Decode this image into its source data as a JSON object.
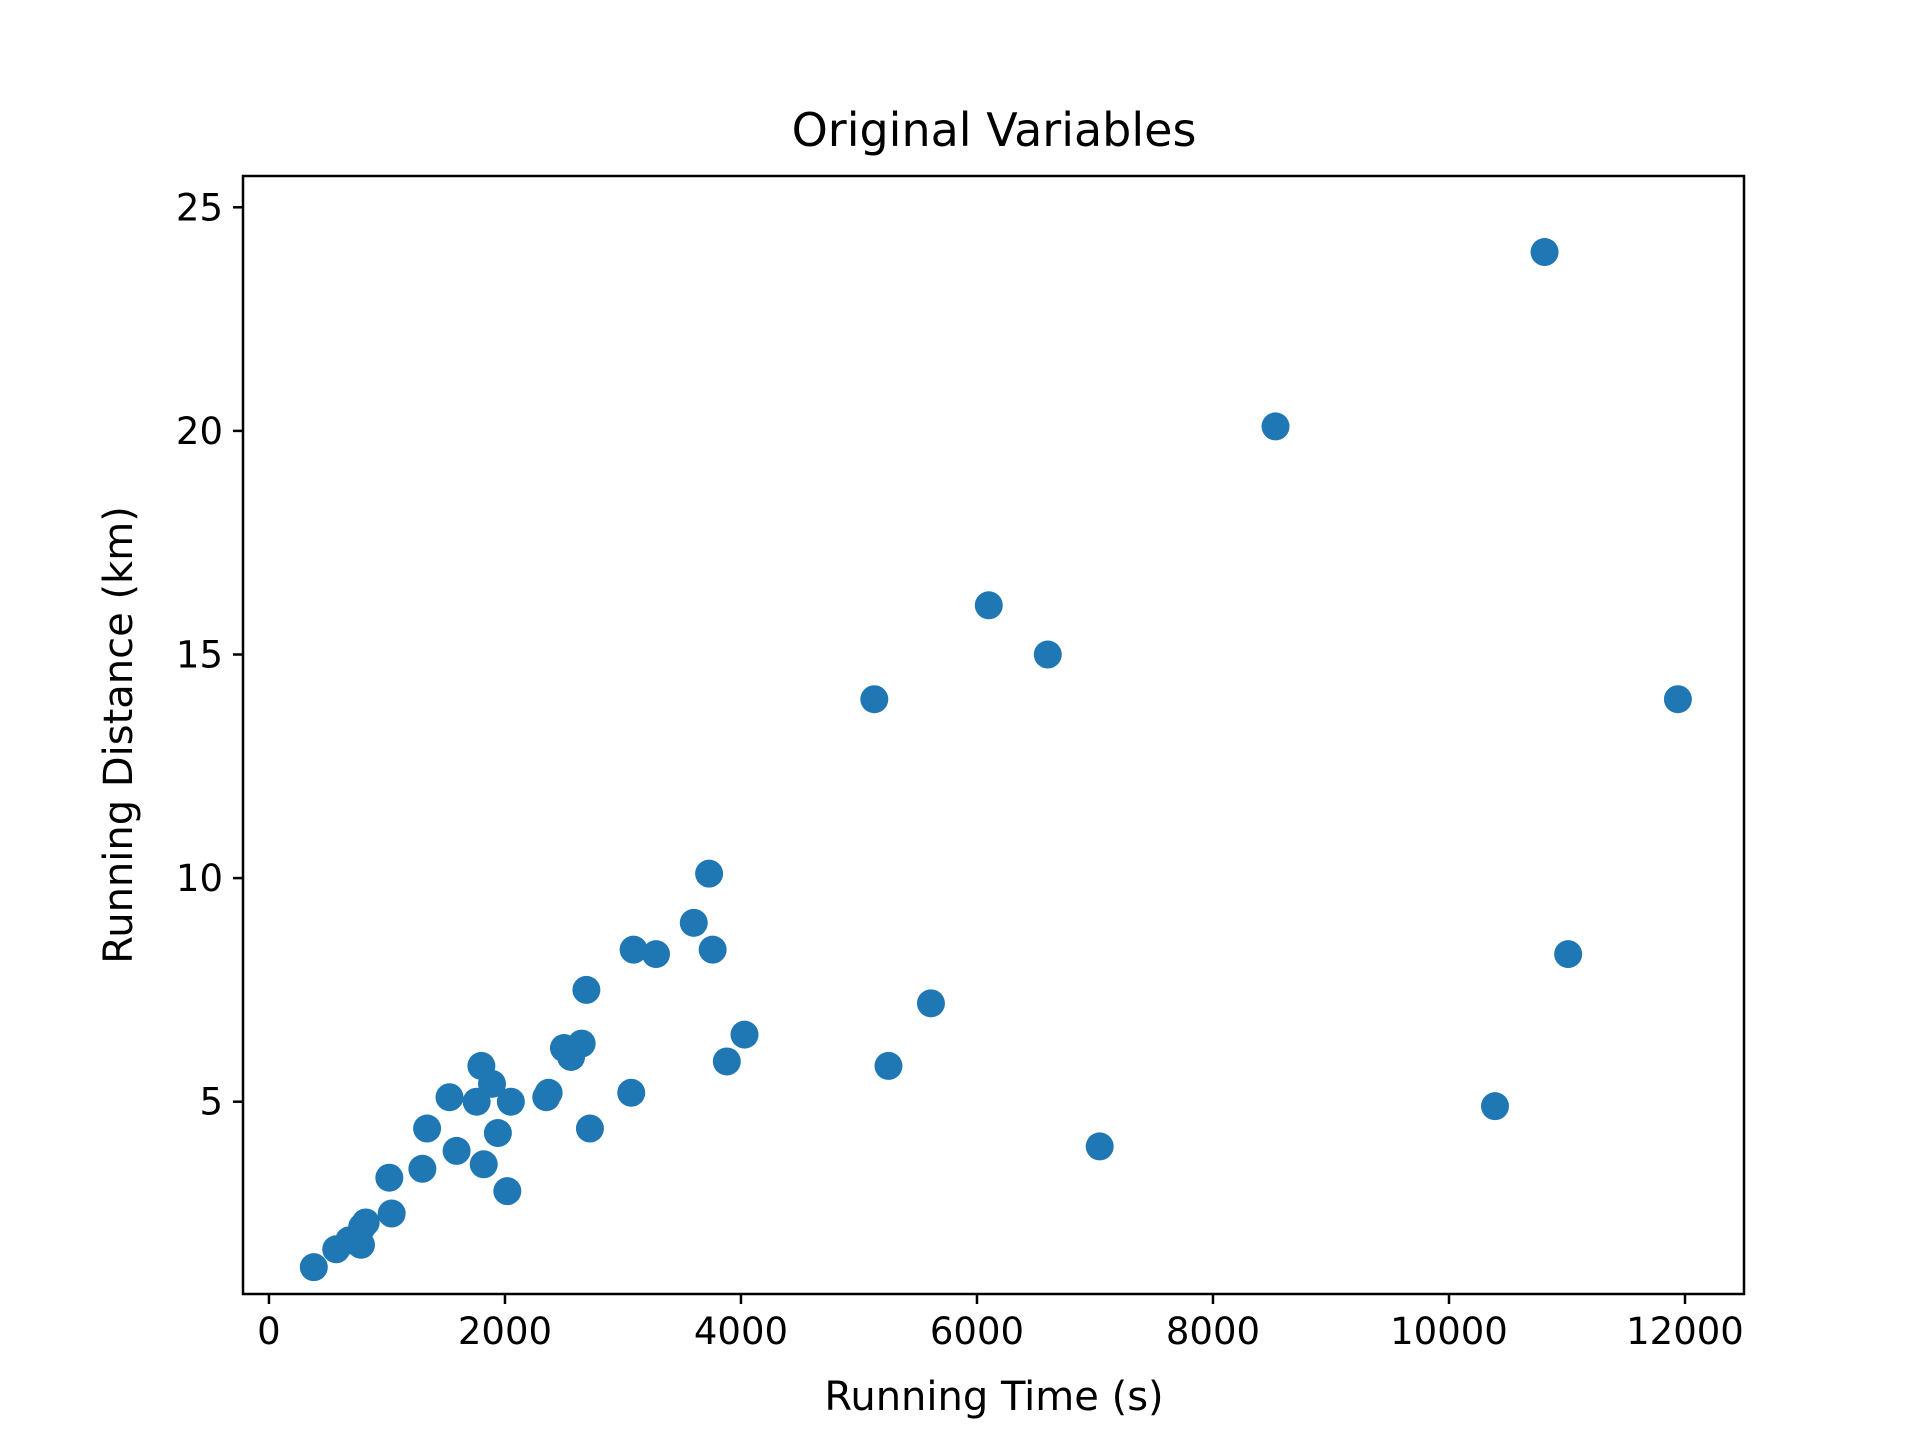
{
  "chart_data": {
    "type": "scatter",
    "title": "Original Variables",
    "xlabel": "Running Time (s)",
    "ylabel": "Running Distance (km)",
    "xlim": [
      -220,
      12500
    ],
    "ylim": [
      0.7,
      25.7
    ],
    "xticks": [
      0,
      2000,
      4000,
      6000,
      8000,
      10000,
      12000
    ],
    "xtick_labels": [
      "0",
      "2000",
      "4000",
      "6000",
      "8000",
      "10000",
      "12000"
    ],
    "yticks": [
      5,
      10,
      15,
      20,
      25
    ],
    "ytick_labels": [
      "5",
      "10",
      "15",
      "20",
      "25"
    ],
    "grid": false,
    "marker_color": "#1f77b4",
    "points": [
      {
        "x": 380,
        "y": 1.3
      },
      {
        "x": 570,
        "y": 1.7
      },
      {
        "x": 680,
        "y": 1.9
      },
      {
        "x": 780,
        "y": 1.8
      },
      {
        "x": 790,
        "y": 2.2
      },
      {
        "x": 820,
        "y": 2.3
      },
      {
        "x": 1020,
        "y": 3.3
      },
      {
        "x": 1040,
        "y": 2.5
      },
      {
        "x": 1300,
        "y": 3.5
      },
      {
        "x": 1340,
        "y": 4.4
      },
      {
        "x": 1530,
        "y": 5.1
      },
      {
        "x": 1590,
        "y": 3.9
      },
      {
        "x": 1760,
        "y": 5.0
      },
      {
        "x": 1800,
        "y": 5.8
      },
      {
        "x": 1820,
        "y": 3.6
      },
      {
        "x": 1890,
        "y": 5.4
      },
      {
        "x": 1940,
        "y": 4.3
      },
      {
        "x": 2020,
        "y": 3.0
      },
      {
        "x": 2050,
        "y": 5.0
      },
      {
        "x": 2350,
        "y": 5.1
      },
      {
        "x": 2370,
        "y": 5.2
      },
      {
        "x": 2500,
        "y": 6.2
      },
      {
        "x": 2560,
        "y": 6.0
      },
      {
        "x": 2650,
        "y": 6.3
      },
      {
        "x": 2690,
        "y": 7.5
      },
      {
        "x": 2720,
        "y": 4.4
      },
      {
        "x": 3070,
        "y": 5.2
      },
      {
        "x": 3090,
        "y": 8.4
      },
      {
        "x": 3280,
        "y": 8.3
      },
      {
        "x": 3600,
        "y": 9.0
      },
      {
        "x": 3730,
        "y": 10.1
      },
      {
        "x": 3760,
        "y": 8.4
      },
      {
        "x": 3880,
        "y": 5.9
      },
      {
        "x": 4030,
        "y": 6.5
      },
      {
        "x": 5130,
        "y": 14.0
      },
      {
        "x": 5250,
        "y": 5.8
      },
      {
        "x": 5610,
        "y": 7.2
      },
      {
        "x": 6100,
        "y": 16.1
      },
      {
        "x": 6600,
        "y": 15.0
      },
      {
        "x": 7040,
        "y": 4.0
      },
      {
        "x": 8530,
        "y": 20.1
      },
      {
        "x": 10390,
        "y": 4.9
      },
      {
        "x": 10810,
        "y": 24.0
      },
      {
        "x": 11010,
        "y": 8.3
      },
      {
        "x": 11940,
        "y": 14.0
      }
    ]
  }
}
